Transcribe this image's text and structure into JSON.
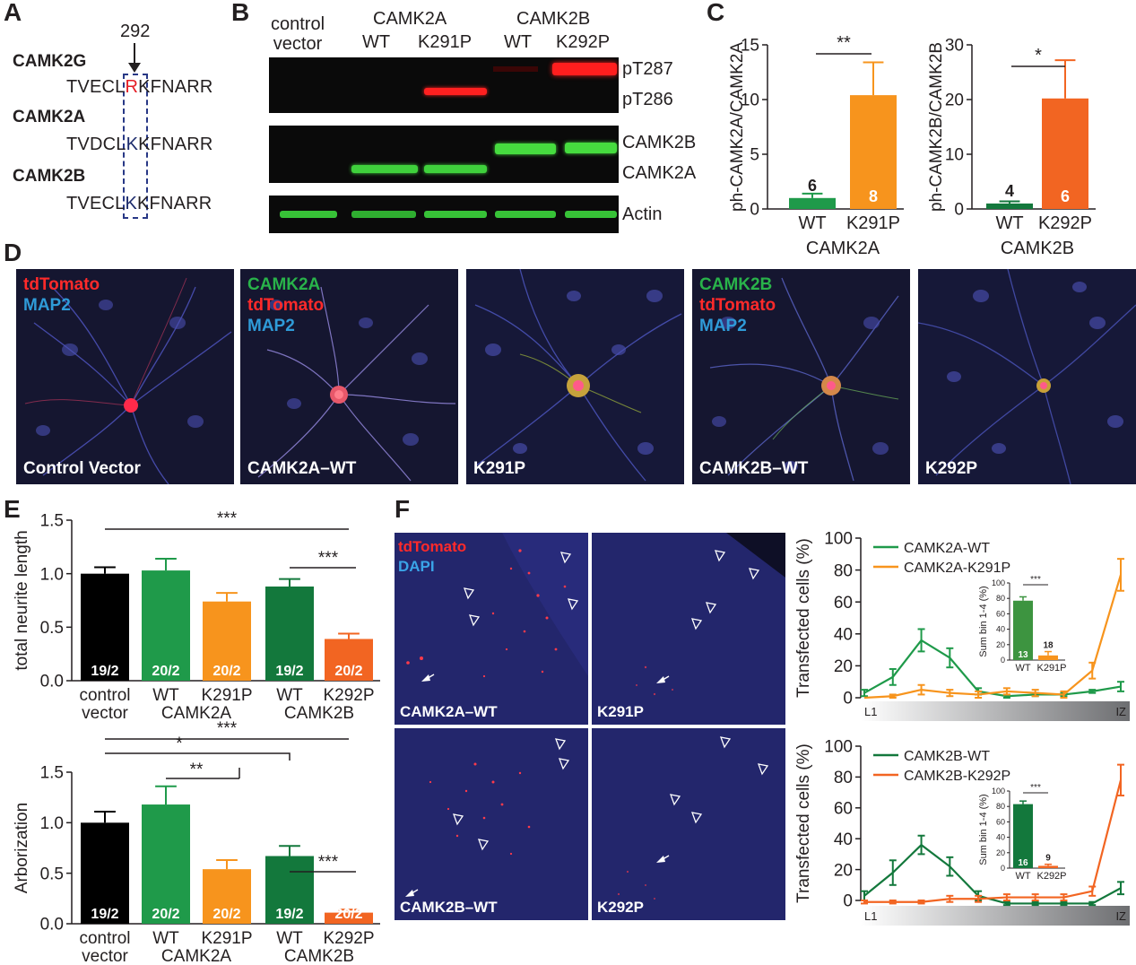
{
  "panel_letters": {
    "a": "A",
    "b": "B",
    "c": "C",
    "d": "D",
    "e": "E",
    "f": "F"
  },
  "panel_a": {
    "position_label": "292",
    "rows": [
      {
        "gene": "CAMK2G",
        "prefix": "TVECL",
        "residue": "R",
        "suffix": "KFNARR",
        "residue_color": "#e41e26"
      },
      {
        "gene": "CAMK2A",
        "prefix": "TVDCL",
        "residue": "K",
        "suffix": "KFNARR",
        "residue_color": "#1b2a6b"
      },
      {
        "gene": "CAMK2B",
        "prefix": "TVECL",
        "residue": "K",
        "suffix": "KFNARR",
        "residue_color": "#1b2a6b"
      }
    ]
  },
  "panel_b": {
    "col_header_control_1": "control",
    "col_header_control_2": "vector",
    "group_1": "CAMK2A",
    "group_2": "CAMK2B",
    "lanes": [
      "WT",
      "K291P",
      "WT",
      "K292P"
    ],
    "band_labels": {
      "pT287": "pT287",
      "pT286": "pT286",
      "camk2b": "CAMK2B",
      "camk2a": "CAMK2A",
      "actin": "Actin"
    }
  },
  "chart_data": [
    {
      "panel": "C-left",
      "type": "bar",
      "categories": [
        "WT",
        "K291P"
      ],
      "group_label": "CAMK2A",
      "values": [
        1.0,
        10.4
      ],
      "errors": [
        0.4,
        3.0
      ],
      "n_labels": [
        "6",
        "8"
      ],
      "ylabel": "ph-CAMK2A/CAMK2A",
      "ylim": [
        0,
        15
      ],
      "yticks": [
        0,
        5,
        10,
        15
      ],
      "significance": "**",
      "colors": [
        "#1f9a4a",
        "#f7941d"
      ]
    },
    {
      "panel": "C-right",
      "type": "bar",
      "categories": [
        "WT",
        "K292P"
      ],
      "group_label": "CAMK2B",
      "values": [
        1.0,
        20.2
      ],
      "errors": [
        0.4,
        7.0
      ],
      "n_labels": [
        "4",
        "6"
      ],
      "ylabel": "ph-CAMK2B/CAMK2B",
      "ylim": [
        0,
        30
      ],
      "yticks": [
        0,
        10,
        20,
        30
      ],
      "significance": "*",
      "colors": [
        "#13783c",
        "#f26522"
      ]
    },
    {
      "panel": "E-top",
      "type": "bar",
      "categories": [
        "control vector",
        "WT",
        "K291P",
        "WT",
        "K292P"
      ],
      "group_labels": [
        "CAMK2A",
        "CAMK2B"
      ],
      "values": [
        1.0,
        1.03,
        0.74,
        0.88,
        0.39
      ],
      "errors": [
        0.06,
        0.11,
        0.08,
        0.07,
        0.05
      ],
      "n_labels": [
        "19/2",
        "20/2",
        "20/2",
        "19/2",
        "20/2"
      ],
      "ylabel": "total neurite length",
      "ylim": [
        0,
        1.5
      ],
      "yticks": [
        "0.0",
        "0.5",
        "1.0",
        "1.5"
      ],
      "significance": [
        "***",
        "***"
      ],
      "colors": [
        "#000000",
        "#1f9a4a",
        "#f7941d",
        "#13783c",
        "#f26522"
      ]
    },
    {
      "panel": "E-bottom",
      "type": "bar",
      "categories": [
        "control vector",
        "WT",
        "K291P",
        "WT",
        "K292P"
      ],
      "group_labels": [
        "CAMK2A",
        "CAMK2B"
      ],
      "values": [
        1.0,
        1.18,
        0.54,
        0.67,
        0.11
      ],
      "errors": [
        0.11,
        0.18,
        0.09,
        0.1,
        0.03
      ],
      "n_labels": [
        "19/2",
        "20/2",
        "20/2",
        "19/2",
        "20/2"
      ],
      "ylabel": "Arborization",
      "ylim": [
        0,
        1.5
      ],
      "yticks": [
        "0.0",
        "0.5",
        "1.0",
        "1.5"
      ],
      "significance": [
        "***",
        "*",
        "**",
        "***"
      ],
      "colors": [
        "#000000",
        "#1f9a4a",
        "#f7941d",
        "#13783c",
        "#f26522"
      ]
    },
    {
      "panel": "F-top",
      "type": "line",
      "x_start_label": "L1",
      "x_end_label": "IZ",
      "x": [
        1,
        2,
        3,
        4,
        5,
        6,
        7,
        8,
        9,
        10
      ],
      "ylabel": "Transfected cells (%)",
      "ylim": [
        0,
        100
      ],
      "yticks": [
        0,
        20,
        40,
        60,
        80,
        100
      ],
      "series": [
        {
          "name": "CAMK2A-WT",
          "color": "#1f9a4a",
          "values": [
            3,
            13,
            36,
            25,
            4,
            1,
            2,
            2,
            4,
            7
          ],
          "errors": [
            2,
            5,
            7,
            6,
            2,
            1,
            1,
            1,
            1,
            3
          ]
        },
        {
          "name": "CAMK2A-K291P",
          "color": "#f7941d",
          "values": [
            0,
            1,
            5,
            3,
            2,
            4,
            3,
            2,
            17,
            77
          ],
          "errors": [
            0,
            1,
            3,
            2,
            2,
            2,
            2,
            2,
            5,
            10
          ]
        }
      ],
      "inset": {
        "ylabel": "Sum bin 1-4 (%)",
        "ylim": [
          0,
          100
        ],
        "yticks": [
          0,
          20,
          40,
          60,
          80,
          100
        ],
        "categories": [
          "WT",
          "K291P"
        ],
        "values": [
          77,
          6
        ],
        "errors": [
          5,
          5
        ],
        "n_labels": [
          "13",
          "18"
        ],
        "significance": "***",
        "colors": [
          "#3d9440",
          "#f7941d"
        ]
      }
    },
    {
      "panel": "F-bottom",
      "type": "line",
      "x_start_label": "L1",
      "x_end_label": "IZ",
      "x": [
        1,
        2,
        3,
        4,
        5,
        6,
        7,
        8,
        9,
        10
      ],
      "ylabel": "Transfected cells (%)",
      "ylim": [
        0,
        100
      ],
      "yticks": [
        0,
        20,
        40,
        60,
        80,
        100
      ],
      "series": [
        {
          "name": "CAMK2B-WT",
          "color": "#13783c",
          "values": [
            3,
            18,
            36,
            22,
            3,
            -2,
            -2,
            -2,
            -2,
            8
          ],
          "errors": [
            3,
            8,
            6,
            6,
            3,
            1,
            1,
            1,
            1,
            4
          ]
        },
        {
          "name": "CAMK2B-K292P",
          "color": "#f26522",
          "values": [
            -1,
            -1,
            -1,
            1,
            1,
            2,
            2,
            2,
            6,
            78
          ],
          "errors": [
            1,
            1,
            1,
            2,
            2,
            2,
            2,
            2,
            3,
            10
          ]
        }
      ],
      "inset": {
        "ylabel": "Sum bin 1-4 (%)",
        "ylim": [
          0,
          100
        ],
        "yticks": [
          0,
          20,
          40,
          60,
          80,
          100
        ],
        "categories": [
          "WT",
          "K292P"
        ],
        "values": [
          83,
          3
        ],
        "errors": [
          4,
          2
        ],
        "n_labels": [
          "16",
          "9"
        ],
        "significance": "***",
        "colors": [
          "#13783c",
          "#f26522"
        ]
      }
    }
  ],
  "panel_e_bottom_extra": {
    "bottom_xlabels": [
      "control",
      "vector"
    ]
  },
  "panel_d": {
    "images": [
      {
        "caption": "Control Vector",
        "channels": [
          {
            "t": "tdTomato",
            "c": "#ff2a2a"
          },
          {
            "t": "MAP2",
            "c": "#2f9bd8"
          }
        ]
      },
      {
        "caption": "CAMK2A–WT",
        "channels": [
          {
            "t": "CAMK2A",
            "c": "#29b34a"
          },
          {
            "t": "tdTomato",
            "c": "#ff2a2a"
          },
          {
            "t": "MAP2",
            "c": "#2f9bd8"
          }
        ]
      },
      {
        "caption": "K291P",
        "channels": []
      },
      {
        "caption": "CAMK2B–WT",
        "channels": [
          {
            "t": "CAMK2B",
            "c": "#29b34a"
          },
          {
            "t": "tdTomato",
            "c": "#ff2a2a"
          },
          {
            "t": "MAP2",
            "c": "#2f9bd8"
          }
        ]
      },
      {
        "caption": "K292P",
        "channels": []
      }
    ]
  },
  "panel_f": {
    "stain_1": "tdTomato",
    "stain_2": "DAPI",
    "slices": [
      "CAMK2A–WT",
      "K291P",
      "CAMK2B–WT",
      "K292P"
    ]
  }
}
